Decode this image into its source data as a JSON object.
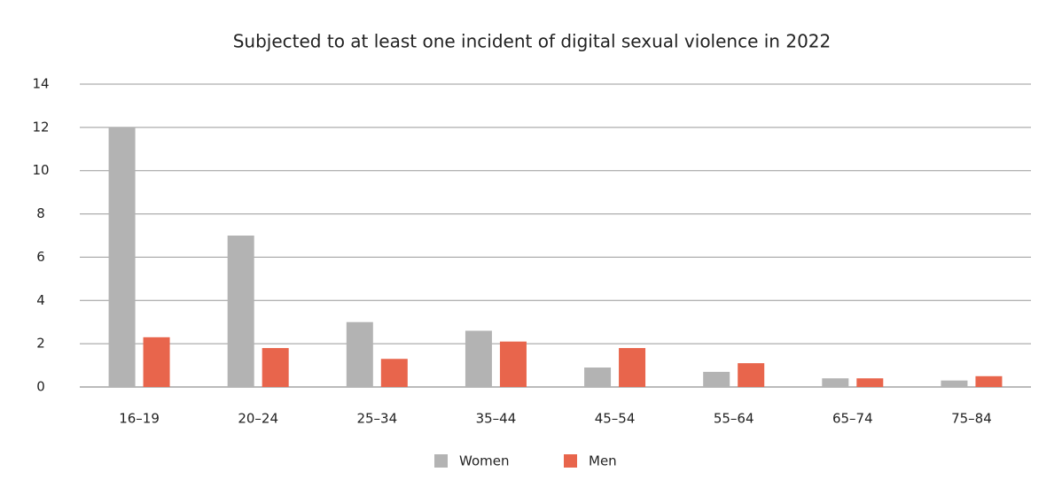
{
  "chart_data": {
    "type": "bar",
    "title": "Subjected to at least one incident of digital sexual violence in 2022",
    "categories": [
      "16–19",
      "20–24",
      "25–34",
      "35–44",
      "45–54",
      "55–64",
      "65–74",
      "75–84"
    ],
    "series": [
      {
        "name": "Women",
        "color": "#b3b3b3",
        "values": [
          12,
          7,
          3,
          2.6,
          0.9,
          0.7,
          0.4,
          0.3
        ]
      },
      {
        "name": "Men",
        "color": "#e8654c",
        "values": [
          2.3,
          1.8,
          1.3,
          2.1,
          1.8,
          1.1,
          0.4,
          0.5
        ]
      }
    ],
    "ylim": [
      0,
      14
    ],
    "yticks": [
      0,
      2,
      4,
      6,
      8,
      10,
      12,
      14
    ],
    "grid": true,
    "legend": "bottom"
  }
}
